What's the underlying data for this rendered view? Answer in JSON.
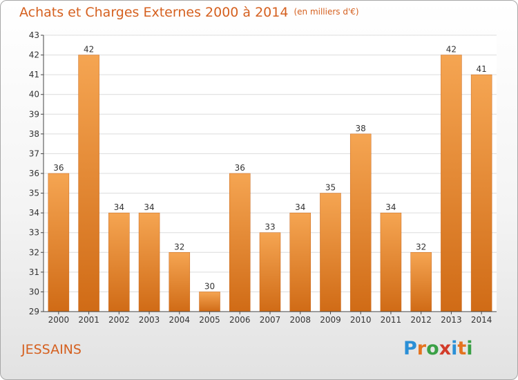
{
  "chart_data": {
    "type": "bar",
    "title": "Achats et Charges Externes 2000 à 2014",
    "subtitle": "(en milliers d'€)",
    "categories": [
      "2000",
      "2001",
      "2002",
      "2003",
      "2004",
      "2005",
      "2006",
      "2007",
      "2008",
      "2009",
      "2010",
      "2011",
      "2012",
      "2013",
      "2014"
    ],
    "values": [
      36,
      42,
      34,
      34,
      32,
      30,
      36,
      33,
      34,
      35,
      38,
      34,
      32,
      42,
      41
    ],
    "ylim": [
      29,
      43
    ],
    "yticks": [
      29,
      30,
      31,
      32,
      33,
      34,
      35,
      36,
      37,
      38,
      39,
      40,
      41,
      42,
      43
    ],
    "grid": true,
    "bar_color": "#f08a2c"
  },
  "location": "JESSAINS",
  "logo": {
    "letters": [
      "P",
      "r",
      "o",
      "x",
      "i",
      "t",
      "i"
    ],
    "colors": [
      "#2a8fd6",
      "#e4731f",
      "#3aa046",
      "#d23c2a",
      "#2a8fd6",
      "#e4731f",
      "#3aa046"
    ]
  }
}
